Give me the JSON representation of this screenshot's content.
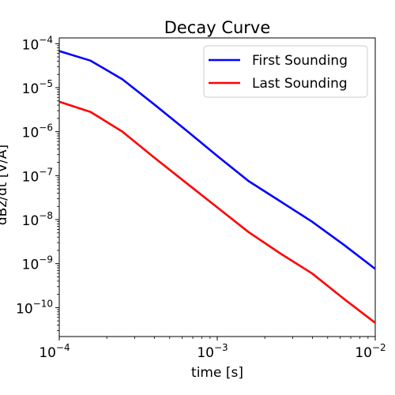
{
  "chart_data": {
    "type": "line",
    "title": "Decay Curve",
    "xlabel": "time [s]",
    "ylabel": "dBz/dt [V/A]",
    "xscale": "log",
    "yscale": "log",
    "xlim": [
      0.0001,
      0.01
    ],
    "ylim": [
      2.2e-11,
      0.000135
    ],
    "grid": false,
    "legend_position": "top-right",
    "x_ticks": [
      {
        "value": 0.0001,
        "base": "10",
        "exp": "−4"
      },
      {
        "value": 0.001,
        "base": "10",
        "exp": "−3"
      },
      {
        "value": 0.01,
        "base": "10",
        "exp": "−2"
      }
    ],
    "y_ticks": [
      {
        "value": 1e-10,
        "base": "10",
        "exp": "−10"
      },
      {
        "value": 1e-09,
        "base": "10",
        "exp": "−9"
      },
      {
        "value": 1e-08,
        "base": "10",
        "exp": "−8"
      },
      {
        "value": 1e-07,
        "base": "10",
        "exp": "−7"
      },
      {
        "value": 1e-06,
        "base": "10",
        "exp": "−6"
      },
      {
        "value": 1e-05,
        "base": "10",
        "exp": "−5"
      },
      {
        "value": 0.0001,
        "base": "10",
        "exp": "−4"
      }
    ],
    "series": [
      {
        "name": "First Sounding",
        "color": "#0000ff",
        "x": [
          0.0001,
          0.000158,
          0.000251,
          0.000398,
          0.000631,
          0.001,
          0.00158,
          0.00251,
          0.00398,
          0.00631,
          0.01
        ],
        "y": [
          6.8e-05,
          4.1e-05,
          1.55e-05,
          4.2e-06,
          1.1e-06,
          2.8e-07,
          7.5e-08,
          2.6e-08,
          9e-09,
          2.7e-09,
          7.6e-10
        ]
      },
      {
        "name": "Last Sounding",
        "color": "#ff0000",
        "x": [
          0.0001,
          0.000158,
          0.000251,
          0.000398,
          0.000631,
          0.001,
          0.00158,
          0.00251,
          0.00398,
          0.00631,
          0.01
        ],
        "y": [
          4.8e-06,
          2.8e-06,
          1e-06,
          2.6e-07,
          7e-08,
          1.9e-08,
          5.2e-09,
          1.7e-09,
          6e-10,
          1.6e-10,
          4.5e-11
        ]
      }
    ]
  }
}
